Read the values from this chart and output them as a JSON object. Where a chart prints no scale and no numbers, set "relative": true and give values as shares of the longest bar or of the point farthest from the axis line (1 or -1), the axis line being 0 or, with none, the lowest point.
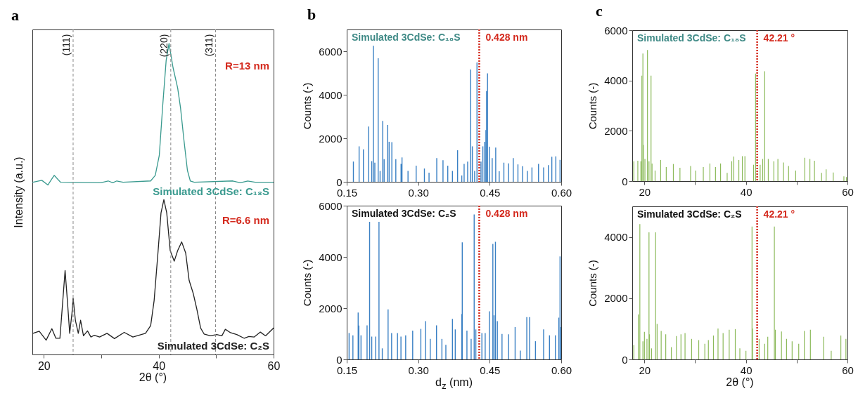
{
  "chart_data": [
    {
      "type": "line",
      "title": "a",
      "xlabel": "2θ (°)",
      "ylabel": "Intensity (a.u.)",
      "relative": true,
      "xlim": [
        18,
        60
      ],
      "xticks": [
        20,
        {
          "value": 30,
          "label": null
        },
        40,
        {
          "value": 50,
          "label": null
        },
        60
      ],
      "series": [
        {
          "name": "Simulated 3CdSe: C₁₈S",
          "color": "#3a9a8f",
          "x": [
            18.1,
            19.65,
            20.7,
            21.8,
            22.9,
            29.9,
            31.2,
            32.0,
            32.7,
            33.8,
            38.6,
            39.4,
            40.1,
            40.7,
            41.3,
            41.8,
            42.5,
            43.3,
            43.8,
            44.4,
            45.0,
            45.5,
            46.2,
            52.9,
            54.2,
            55.5,
            56.8,
            60
          ],
          "values": [
            0.554,
            0.56,
            0.545,
            0.576,
            0.554,
            0.552,
            0.558,
            0.552,
            0.558,
            0.554,
            0.558,
            0.576,
            0.64,
            0.801,
            0.946,
            1,
            0.922,
            0.857,
            0.793,
            0.688,
            0.592,
            0.558,
            0.554,
            0.558,
            0.552,
            0.558,
            0.554,
            0.554
          ]
        },
        {
          "name": "Simulated 3CdSe: C₂S",
          "color": "#222222",
          "x": [
            18.1,
            19.2,
            20.4,
            21.4,
            22.1,
            22.8,
            23.3,
            23.7,
            24.1,
            24.5,
            24.9,
            25.1,
            25.5,
            26.0,
            26.4,
            26.9,
            27.6,
            28.2,
            28.8,
            29.7,
            31.0,
            32.3,
            34.0,
            35.5,
            37.7,
            38.6,
            39.2,
            39.9,
            40.4,
            40.9,
            41.4,
            42.0,
            42.7,
            43.3,
            44.0,
            44.7,
            45.3,
            46.0,
            46.6,
            47.3,
            47.9,
            49.0,
            50.1,
            51.0,
            51.6,
            52.5,
            53.6,
            54.9,
            55.7,
            56.6,
            57.7,
            58.6,
            60
          ],
          "values": [
            0.068,
            0.075,
            0.046,
            0.083,
            0.052,
            0.052,
            0.173,
            0.27,
            0.173,
            0.068,
            0.133,
            0.181,
            0.109,
            0.068,
            0.11,
            0.06,
            0.076,
            0.056,
            0.062,
            0.056,
            0.068,
            0.051,
            0.071,
            0.056,
            0.068,
            0.093,
            0.173,
            0.334,
            0.455,
            0.498,
            0.455,
            0.334,
            0.3,
            0.334,
            0.362,
            0.326,
            0.238,
            0.197,
            0.149,
            0.085,
            0.066,
            0.06,
            0.064,
            0.06,
            0.081,
            0.07,
            0.064,
            0.052,
            0.058,
            0.056,
            0.072,
            0.06,
            0.085
          ]
        }
      ],
      "ref_lines": [
        {
          "axis": "x",
          "value": 25.1,
          "color": "#888888",
          "line_style": "dashed"
        },
        {
          "axis": "x",
          "value": 42.1,
          "color": "#888888",
          "line_style": "dashed"
        },
        {
          "axis": "x",
          "value": 49.9,
          "color": "#888888",
          "line_style": "dashed"
        }
      ],
      "annotations": [
        "R=13 nm",
        "R=6.6 nm",
        {
          "text": "(111)",
          "x": 25.1,
          "y": 1.03
        },
        {
          "text": "(220)",
          "x": 42.1,
          "y": 1.03
        },
        {
          "text": "(311)",
          "x": 49.9,
          "y": 1.03
        }
      ]
    },
    {
      "type": "bar",
      "title": "b",
      "ylabel": "Counts (-)",
      "xlim": [
        0.15,
        0.6
      ],
      "xticks": [
        0.15,
        {
          "value": 0.3,
          "label": "0.30"
        },
        0.45,
        {
          "value": 0.6,
          "label": "0.60"
        }
      ],
      "ylim": [
        0,
        7000
      ],
      "yticks": [
        0,
        2000,
        4000,
        6000
      ],
      "annotations": [
        "Simulated 3CdSe: C₁₈S"
      ],
      "series": [
        {
          "color": "#3a80c4",
          "x": [
            0.164,
            0.176,
            0.185,
            0.196,
            0.2025,
            0.205,
            0.206,
            0.209,
            0.216,
            0.22,
            0.2256,
            0.2285,
            0.236,
            0.239,
            0.2447,
            0.253,
            0.264,
            0.266,
            0.2786,
            0.2957,
            0.313,
            0.3227,
            0.3389,
            0.352,
            0.362,
            0.3718,
            0.3826,
            0.3914,
            0.3963,
            0.4037,
            0.41,
            0.4135,
            0.4184,
            0.4233,
            0.4267,
            0.4317,
            0.4356,
            0.4395,
            0.442,
            0.4434,
            0.4454,
            0.4493,
            0.4552,
            0.4626,
            0.4699,
            0.4797,
            0.4895,
            0.4994,
            0.5092,
            0.519,
            0.5288,
            0.5386,
            0.5524,
            0.5631,
            0.573,
            0.5803,
            0.5887,
            0.5975
          ],
          "values": [
            930,
            1630,
            1490,
            2540,
            950,
            null,
            6250,
            880,
            5680,
            500,
            2800,
            1040,
            2610,
            1840,
            1820,
            1040,
            820,
            1120,
            500,
            740,
            610,
            420,
            1090,
            990,
            740,
            500,
            1450,
            290,
            820,
            930,
            5160,
            1630,
            500,
            5480,
            null,
            930,
            1630,
            1840,
            2380,
            4170,
            4980,
            1610,
            1090,
            1570,
            480,
            880,
            850,
            1090,
            800,
            720,
            500,
            660,
            820,
            660,
            770,
            1150,
            1170,
            1010
          ]
        }
      ],
      "ref_lines": [
        {
          "axis": "x",
          "value": 0.428,
          "label": "0.428 nm",
          "color": "#d42a1e",
          "line_style": "dotted"
        }
      ]
    },
    {
      "type": "bar",
      "xlabel": "d$_{z}$ (nm)",
      "ylabel": "Counts (-)",
      "xlim": [
        0.15,
        0.6
      ],
      "xticks": [
        0.15,
        {
          "value": 0.3,
          "label": "0.30"
        },
        0.45,
        {
          "value": 0.6,
          "label": "0.60"
        }
      ],
      "ylim": [
        0,
        6000
      ],
      "yticks": [
        0,
        2000,
        4000,
        6000
      ],
      "annotations": [
        "Simulated 3CdSe: C₂S"
      ],
      "series": [
        {
          "color": "#3a80c4",
          "x": [
            0.155,
            0.163,
            0.174,
            0.1755,
            0.18,
            0.1927,
            0.198,
            0.2025,
            0.2108,
            0.2177,
            0.2246,
            0.2368,
            0.2442,
            0.2565,
            0.2638,
            0.2737,
            0.2884,
            0.3055,
            0.3154,
            0.3252,
            0.3384,
            0.3497,
            0.358,
            0.3718,
            0.3777,
            0.3914,
            0.3924,
            0.4022,
            0.411,
            0.4174,
            0.4209,
            0.4336,
            0.4405,
            0.4493,
            0.4566,
            0.459,
            0.462,
            0.466,
            0.4758,
            0.4895,
            0.5033,
            0.5141,
            0.5278,
            0.5337,
            0.546,
            0.5631,
            0.5754,
            0.5877,
            0.595,
            0.5975,
            0.6
          ],
          "values": [
            1030,
            940,
            1830,
            1320,
            940,
            1330,
            5370,
            890,
            890,
            5370,
            430,
            1950,
            1030,
            1030,
            890,
            940,
            1120,
            1190,
            1490,
            800,
            1330,
            800,
            570,
            1580,
            1170,
            1770,
            4570,
            1120,
            800,
            5660,
            1170,
            1030,
            1030,
            1880,
            4510,
            1720,
            4590,
            1490,
            990,
            980,
            1260,
            340,
            1650,
            1650,
            710,
            1170,
            940,
            940,
            1630,
            4020,
            1260
          ]
        }
      ],
      "ref_lines": [
        {
          "axis": "x",
          "value": 0.428,
          "label": "0.428 nm",
          "color": "#d42a1e",
          "line_style": "dotted"
        }
      ]
    },
    {
      "type": "bar",
      "title": "c",
      "ylabel": "Counts (-)",
      "xlim": [
        17.6,
        60
      ],
      "xticks": [
        20,
        {
          "value": 30,
          "label": null
        },
        40,
        {
          "value": 50,
          "label": null
        },
        60
      ],
      "ylim": [
        0,
        6000
      ],
      "yticks": [
        0,
        2000,
        4000,
        6000
      ],
      "annotations": [
        "Simulated 3CdSe: C₁₈S"
      ],
      "series": [
        {
          "color": "#8cba5a",
          "x": [
            17.9,
            18.7,
            19.3,
            19.5,
            19.7,
            19.8,
            20.1,
            20.6,
            20.9,
            21.3,
            21.5,
            22.1,
            23.2,
            24.3,
            25.7,
            27.0,
            29.1,
            30.1,
            31.6,
            32.9,
            34.0,
            35.0,
            36.3,
            37.2,
            37.6,
            38.6,
            39.3,
            39.8,
            41.5,
            41.9,
            42.8,
            43.3,
            43.7,
            44.4,
            45.5,
            46.3,
            47.4,
            48.4,
            49.8,
            51.6,
            52.6,
            53.5,
            54.9,
            55.8,
            57.2,
            59.3,
            59.8
          ],
          "values": [
            790,
            810,
            790,
            4190,
            5070,
            1440,
            880,
            5210,
            790,
            4190,
            700,
            420,
            840,
            560,
            680,
            530,
            600,
            420,
            560,
            700,
            560,
            700,
            330,
            790,
            980,
            840,
            990,
            990,
            650,
            4280,
            650,
            880,
            4370,
            880,
            790,
            880,
            740,
            600,
            420,
            930,
            880,
            810,
            330,
            470,
            340,
            190,
            160
          ]
        }
      ],
      "ref_lines": [
        {
          "axis": "x",
          "value": 42.21,
          "label": "42.21 °",
          "color": "#d42a1e",
          "line_style": "dotted"
        }
      ]
    },
    {
      "type": "bar",
      "xlabel": "2θ (°)",
      "ylabel": "Counts (-)",
      "xlim": [
        17.6,
        60
      ],
      "xticks": [
        20,
        {
          "value": 30,
          "label": null
        },
        40,
        {
          "value": 50,
          "label": null
        },
        60
      ],
      "ylim": [
        0,
        5000
      ],
      "yticks": [
        0,
        2000,
        4000
      ],
      "annotations": [
        "Simulated 3CdSe: C₂S"
      ],
      "series": [
        {
          "color": "#8cba5a",
          "x": [
            17.9,
            18.8,
            19.0,
            19.1,
            19.7,
            20.0,
            20.5,
            20.9,
            21.0,
            21.4,
            22.2,
            22.5,
            23.3,
            24.2,
            25.3,
            26.3,
            27.2,
            28.0,
            29.3,
            30.7,
            31.9,
            32.6,
            33.6,
            34.5,
            35.5,
            36.7,
            37.9,
            38.8,
            40.0,
            41.2,
            41.3,
            42.6,
            43.7,
            44.3,
            45.6,
            45.8,
            47.0,
            48.0,
            49.1,
            50.4,
            51.5,
            52.7,
            55.3,
            56.8,
            58.7,
            59.7
          ],
          "values": [
            470,
            1470,
            null,
            4420,
            590,
            900,
            670,
            4150,
            820,
            360,
            4150,
            1160,
            930,
            820,
            400,
            760,
            820,
            860,
            670,
            630,
            510,
            630,
            780,
            1010,
            860,
            970,
            990,
            360,
            280,
            4340,
            1010,
            670,
            510,
            740,
            4340,
            970,
            910,
            670,
            590,
            510,
            930,
            970,
            740,
            280,
            780,
            670
          ]
        }
      ],
      "ref_lines": [
        {
          "axis": "x",
          "value": 42.21,
          "label": "42.21 °",
          "color": "#d42a1e",
          "line_style": "dotted"
        }
      ]
    }
  ]
}
